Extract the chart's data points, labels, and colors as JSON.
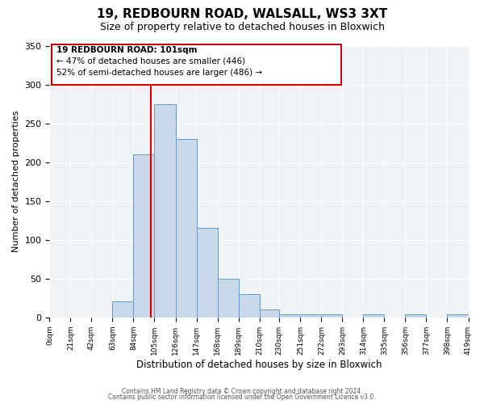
{
  "title": "19, REDBOURN ROAD, WALSALL, WS3 3XT",
  "subtitle": "Size of property relative to detached houses in Bloxwich",
  "xlabel": "Distribution of detached houses by size in Bloxwich",
  "ylabel": "Number of detached properties",
  "bin_edges": [
    0,
    21,
    42,
    63,
    84,
    105,
    126,
    147,
    168,
    189,
    210,
    230,
    251,
    272,
    293,
    314,
    335,
    356,
    377,
    398,
    419
  ],
  "bin_counts": [
    0,
    0,
    0,
    21,
    210,
    275,
    230,
    115,
    50,
    30,
    10,
    4,
    4,
    4,
    0,
    4,
    0,
    4,
    0,
    4
  ],
  "bar_facecolor": "#c9d9ea",
  "bar_edgecolor": "#5b9bd5",
  "vline_x": 101,
  "vline_color": "#cc0000",
  "annotation_title": "19 REDBOURN ROAD: 101sqm",
  "annotation_line1": "← 47% of detached houses are smaller (446)",
  "annotation_line2": "52% of semi-detached houses are larger (486) →",
  "annotation_box_color": "#cc0000",
  "annotation_text_color": "#000000",
  "footer1": "Contains HM Land Registry data © Crown copyright and database right 2024.",
  "footer2": "Contains public sector information licensed under the Open Government Licence v3.0.",
  "ylim": [
    0,
    350
  ],
  "xlim": [
    0,
    419
  ],
  "bg_color": "#ffffff",
  "plot_bg_color": "#eef3f8",
  "tick_labels": [
    "0sqm",
    "21sqm",
    "42sqm",
    "63sqm",
    "84sqm",
    "105sqm",
    "126sqm",
    "147sqm",
    "168sqm",
    "189sqm",
    "210sqm",
    "230sqm",
    "251sqm",
    "272sqm",
    "293sqm",
    "314sqm",
    "335sqm",
    "356sqm",
    "377sqm",
    "398sqm",
    "419sqm"
  ],
  "yticks": [
    0,
    50,
    100,
    150,
    200,
    250,
    300,
    350
  ]
}
